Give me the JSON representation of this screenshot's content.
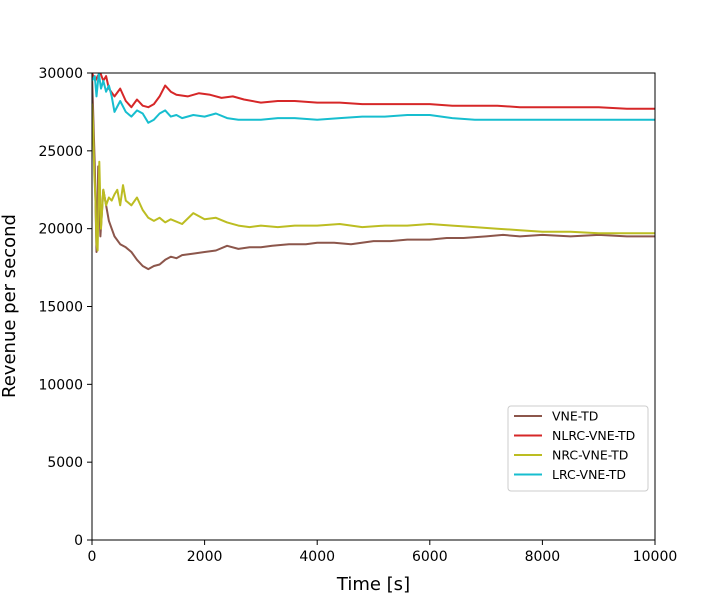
{
  "chart_data": {
    "type": "line",
    "title": "",
    "xlabel": "Time [s]",
    "ylabel": "Revenue per second",
    "xlim": [
      0,
      10000
    ],
    "ylim": [
      0,
      30000
    ],
    "xticks": [
      0,
      2000,
      4000,
      6000,
      8000,
      10000
    ],
    "yticks": [
      0,
      5000,
      10000,
      15000,
      20000,
      25000,
      30000
    ],
    "grid": false,
    "legend_position": "lower-right",
    "series": [
      {
        "name": "VNE-TD",
        "color": "#8c564b",
        "x": [
          0,
          50,
          80,
          110,
          150,
          200,
          250,
          300,
          350,
          400,
          500,
          600,
          700,
          800,
          900,
          1000,
          1100,
          1200,
          1300,
          1400,
          1500,
          1600,
          1800,
          2000,
          2200,
          2400,
          2600,
          2800,
          3000,
          3200,
          3500,
          3800,
          4000,
          4300,
          4600,
          5000,
          5300,
          5600,
          6000,
          6300,
          6600,
          7000,
          7300,
          7600,
          8000,
          8500,
          9000,
          9500,
          10000
        ],
        "y": [
          30000,
          24000,
          18500,
          24000,
          19500,
          22500,
          21500,
          20500,
          20000,
          19500,
          19000,
          18800,
          18500,
          18000,
          17600,
          17400,
          17600,
          17700,
          18000,
          18200,
          18100,
          18300,
          18400,
          18500,
          18600,
          18900,
          18700,
          18800,
          18800,
          18900,
          19000,
          19000,
          19100,
          19100,
          19000,
          19200,
          19200,
          19300,
          19300,
          19400,
          19400,
          19500,
          19600,
          19500,
          19600,
          19500,
          19600,
          19500,
          19500
        ]
      },
      {
        "name": "NLRC-VNE-TD",
        "color": "#d62728",
        "x": [
          0,
          60,
          100,
          150,
          200,
          250,
          300,
          400,
          500,
          600,
          700,
          800,
          900,
          1000,
          1100,
          1200,
          1300,
          1400,
          1500,
          1700,
          1900,
          2100,
          2300,
          2500,
          2700,
          3000,
          3300,
          3600,
          4000,
          4400,
          4800,
          5200,
          5600,
          6000,
          6400,
          6800,
          7200,
          7600,
          8000,
          8500,
          9000,
          9500,
          10000
        ],
        "y": [
          30000,
          29500,
          29800,
          30000,
          29500,
          29800,
          29000,
          28500,
          29000,
          28200,
          27800,
          28300,
          27900,
          27800,
          28000,
          28500,
          29200,
          28800,
          28600,
          28500,
          28700,
          28600,
          28400,
          28500,
          28300,
          28100,
          28200,
          28200,
          28100,
          28100,
          28000,
          28000,
          28000,
          28000,
          27900,
          27900,
          27900,
          27800,
          27800,
          27800,
          27800,
          27700,
          27700
        ]
      },
      {
        "name": "NRC-VNE-TD",
        "color": "#bcbd22",
        "x": [
          0,
          20,
          40,
          60,
          80,
          100,
          130,
          160,
          200,
          250,
          300,
          350,
          400,
          450,
          500,
          550,
          600,
          700,
          800,
          900,
          1000,
          1100,
          1200,
          1300,
          1400,
          1600,
          1800,
          2000,
          2200,
          2400,
          2600,
          2800,
          3000,
          3300,
          3600,
          4000,
          4400,
          4800,
          5200,
          5600,
          6000,
          6400,
          6800,
          7200,
          7600,
          8000,
          8500,
          9000,
          9500,
          10000
        ],
        "y": [
          28000,
          26500,
          23500,
          22000,
          19000,
          18600,
          24300,
          20000,
          22500,
          21500,
          22000,
          21800,
          22200,
          22500,
          21500,
          22800,
          21800,
          21500,
          22000,
          21200,
          20700,
          20500,
          20700,
          20400,
          20600,
          20300,
          21000,
          20600,
          20700,
          20400,
          20200,
          20100,
          20200,
          20100,
          20200,
          20200,
          20300,
          20100,
          20200,
          20200,
          20300,
          20200,
          20100,
          20000,
          19900,
          19800,
          19800,
          19700,
          19700,
          19700
        ]
      },
      {
        "name": "LRC-VNE-TD",
        "color": "#17becf",
        "x": [
          0,
          50,
          80,
          120,
          160,
          200,
          250,
          300,
          350,
          400,
          500,
          600,
          700,
          800,
          900,
          1000,
          1100,
          1200,
          1300,
          1400,
          1500,
          1600,
          1800,
          2000,
          2200,
          2400,
          2600,
          2800,
          3000,
          3300,
          3600,
          4000,
          4400,
          4800,
          5200,
          5600,
          6000,
          6400,
          6800,
          7200,
          7600,
          8000,
          8500,
          9000,
          9500,
          10000
        ],
        "y": [
          29500,
          29800,
          28500,
          30000,
          29000,
          29500,
          28800,
          29200,
          28500,
          27500,
          28200,
          27500,
          27200,
          27600,
          27400,
          26800,
          27000,
          27400,
          27600,
          27200,
          27300,
          27100,
          27300,
          27200,
          27400,
          27100,
          27000,
          27000,
          27000,
          27100,
          27100,
          27000,
          27100,
          27200,
          27200,
          27300,
          27300,
          27100,
          27000,
          27000,
          27000,
          27000,
          27000,
          27000,
          27000,
          27000
        ]
      }
    ]
  }
}
